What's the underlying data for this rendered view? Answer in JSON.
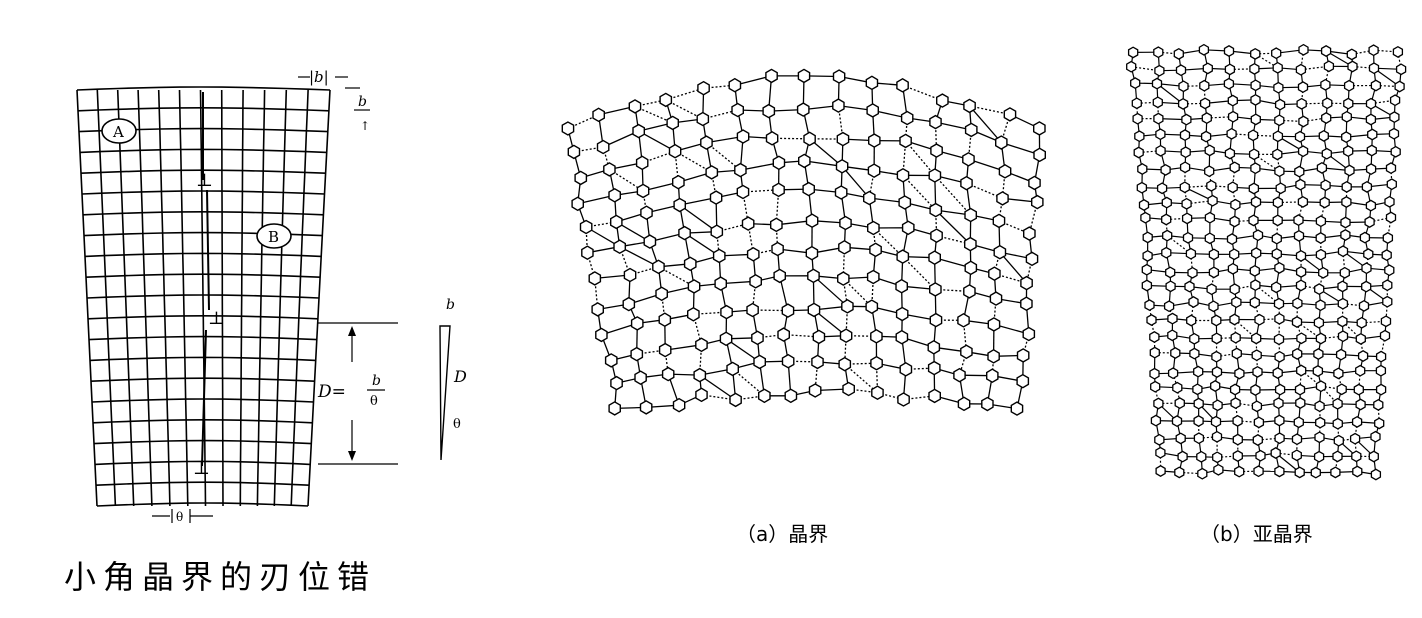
{
  "dislocation_figure": {
    "caption": "小角晶界的刃位错",
    "label_a": "A",
    "label_b": "B",
    "burgers": "b",
    "burgers_abs": "|b|",
    "spacing": "D",
    "formula_lhs": "D=",
    "formula_num": "b",
    "formula_den": "θ",
    "theta": "θ",
    "wedge_b": "b",
    "wedge_d": "D",
    "wedge_theta": "θ",
    "dislocation_symbol": "⊥"
  },
  "grain_boundary": {
    "caption": "（a）晶界"
  },
  "subgrain_boundary": {
    "caption": "（b）亚晶界"
  }
}
